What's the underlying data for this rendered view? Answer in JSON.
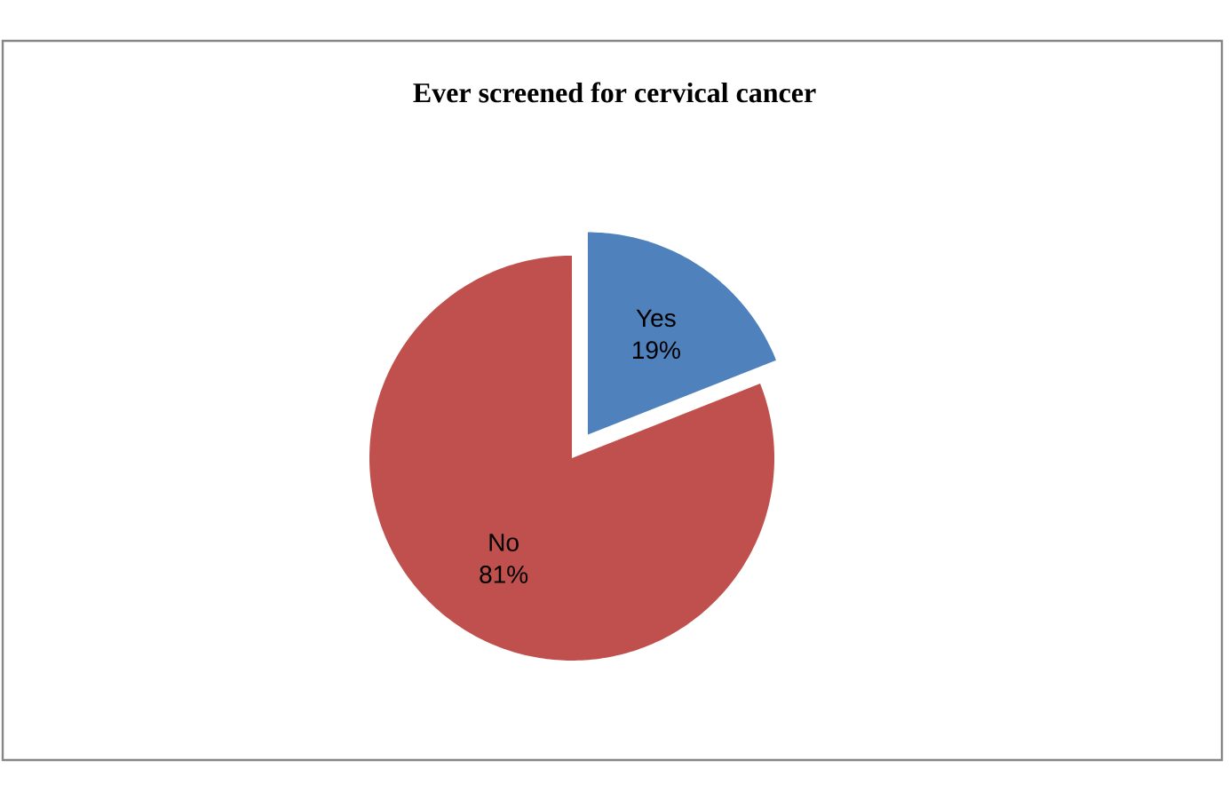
{
  "chart_data": {
    "type": "pie",
    "title": "Ever screened for cervical cancer",
    "categories": [
      "Yes",
      "No"
    ],
    "values": [
      19,
      81
    ],
    "value_labels": [
      "19%",
      "81%"
    ],
    "colors": [
      "#4f81bd",
      "#c0504d"
    ]
  }
}
